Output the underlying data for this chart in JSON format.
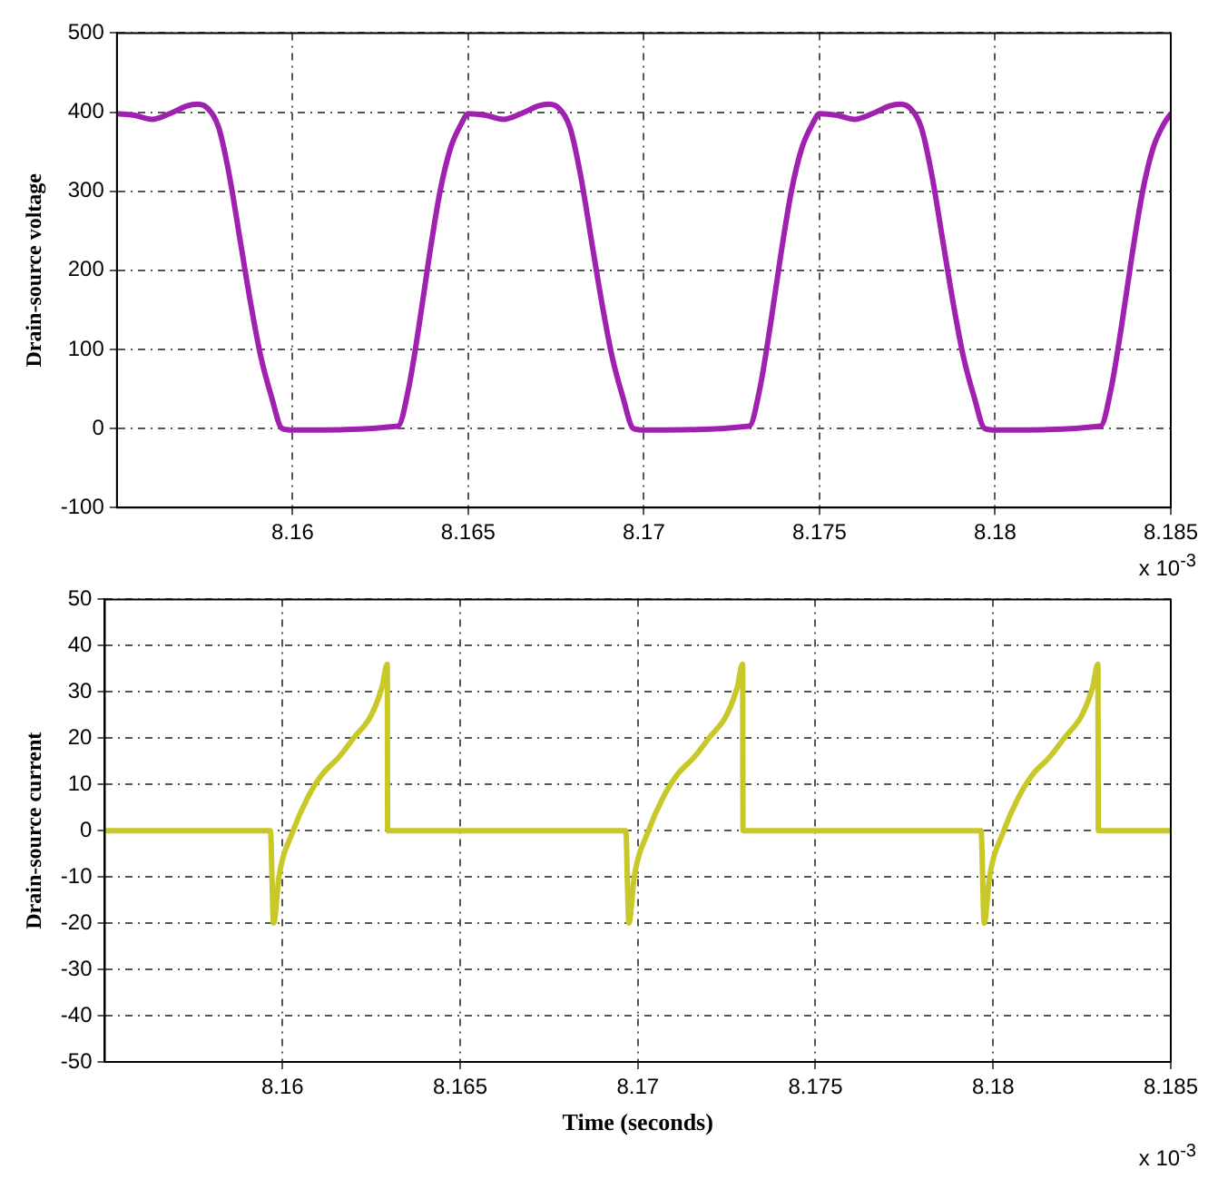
{
  "chart_data": [
    {
      "type": "line",
      "ylabel": "Drain-source voltage",
      "annotations": [
        "x 10$^{-3}$"
      ],
      "x": [
        8.155,
        8.1555,
        8.156,
        8.1565,
        8.157,
        8.1573,
        8.1576,
        8.1579,
        8.1582,
        8.1585,
        8.1588,
        8.1591,
        8.1594,
        8.1597,
        8.16,
        8.163,
        8.1633,
        8.1636,
        8.1639,
        8.1642,
        8.1645,
        8.1648,
        8.165,
        8.1655,
        8.166,
        8.1665,
        8.167,
        8.1673,
        8.1676,
        8.1679,
        8.1682,
        8.1685,
        8.1688,
        8.1691,
        8.1694,
        8.1697,
        8.17,
        8.173,
        8.1733,
        8.1736,
        8.1739,
        8.1742,
        8.1745,
        8.1748,
        8.175,
        8.1755,
        8.176,
        8.1765,
        8.177,
        8.1773,
        8.1776,
        8.1779,
        8.1782,
        8.1785,
        8.1788,
        8.1791,
        8.1794,
        8.1797,
        8.18,
        8.183,
        8.1833,
        8.1836,
        8.1839,
        8.1842,
        8.1845,
        8.1848,
        8.185
      ],
      "series": [
        {
          "color": "#a020b0",
          "values": [
            398,
            396,
            391,
            398,
            408,
            410,
            404,
            380,
            320,
            240,
            160,
            90,
            40,
            0,
            -2,
            3,
            50,
            130,
            220,
            300,
            355,
            385,
            398,
            396,
            391,
            398,
            408,
            410,
            404,
            380,
            320,
            240,
            160,
            90,
            40,
            0,
            -2,
            3,
            50,
            130,
            220,
            300,
            355,
            385,
            398,
            396,
            391,
            398,
            408,
            410,
            404,
            380,
            320,
            240,
            160,
            90,
            40,
            0,
            -2,
            3,
            50,
            130,
            220,
            300,
            355,
            385,
            398
          ]
        }
      ],
      "xlim": [
        8.155,
        8.185
      ],
      "xticks": [
        8.16,
        8.165,
        8.17,
        8.175,
        8.18,
        8.185
      ],
      "ylim": [
        -100,
        500
      ],
      "yticks": [
        -100,
        0,
        100,
        200,
        300,
        400,
        500
      ],
      "grid": true,
      "legend": false,
      "marker": "none",
      "line_style": "solid"
    },
    {
      "type": "line",
      "xlabel": "Time (seconds)",
      "ylabel": "Drain-source current",
      "annotations": [
        "x 10$^{-3}$"
      ],
      "x": [
        8.155,
        8.15966,
        8.15975,
        8.1599,
        8.1603,
        8.1607,
        8.1611,
        8.1616,
        8.162,
        8.1625,
        8.1628,
        8.16295,
        8.16296,
        8.16966,
        8.16975,
        8.1699,
        8.1703,
        8.1707,
        8.1711,
        8.1716,
        8.172,
        8.1725,
        8.1728,
        8.17295,
        8.17296,
        8.17966,
        8.17975,
        8.1799,
        8.1803,
        8.1807,
        8.1811,
        8.1816,
        8.182,
        8.1825,
        8.1828,
        8.18295,
        8.18296,
        8.185
      ],
      "series": [
        {
          "color": "#c8c828",
          "values": [
            0,
            0,
            -20,
            -10,
            0,
            7,
            12,
            16,
            20,
            25,
            31,
            36,
            0,
            0,
            -20,
            -10,
            0,
            7,
            12,
            16,
            20,
            25,
            31,
            36,
            0,
            0,
            -20,
            -10,
            0,
            7,
            12,
            16,
            20,
            25,
            31,
            36,
            0,
            0
          ]
        }
      ],
      "xlim": [
        8.155,
        8.185
      ],
      "xticks": [
        8.16,
        8.165,
        8.17,
        8.175,
        8.18,
        8.185
      ],
      "ylim": [
        -50,
        50
      ],
      "yticks": [
        -50,
        -40,
        -30,
        -20,
        -10,
        0,
        10,
        20,
        30,
        40,
        50
      ],
      "grid": true,
      "legend": false,
      "marker": "none",
      "line_style": "solid"
    }
  ]
}
